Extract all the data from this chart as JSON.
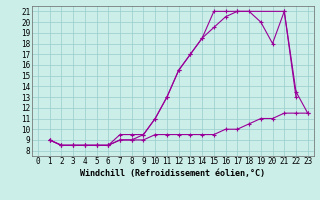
{
  "line1_x": [
    1,
    2,
    3,
    4,
    5,
    6,
    7,
    8,
    9,
    10,
    11,
    12,
    13,
    14,
    15,
    16,
    17,
    21,
    22
  ],
  "line1_y": [
    9.0,
    8.5,
    8.5,
    8.5,
    8.5,
    8.5,
    9.5,
    9.5,
    9.5,
    11.0,
    13.0,
    15.5,
    17.0,
    18.5,
    21.0,
    21.0,
    21.0,
    21.0,
    13.0
  ],
  "line2_x": [
    1,
    2,
    3,
    4,
    5,
    6,
    7,
    8,
    9,
    10,
    11,
    12,
    13,
    14,
    15,
    16,
    17,
    18,
    19,
    20,
    21,
    22,
    23
  ],
  "line2_y": [
    9.0,
    8.5,
    8.5,
    8.5,
    8.5,
    8.5,
    9.0,
    9.0,
    9.5,
    11.0,
    13.0,
    15.5,
    17.0,
    18.5,
    19.5,
    20.5,
    21.0,
    21.0,
    20.0,
    18.0,
    21.0,
    13.5,
    11.5
  ],
  "line3_x": [
    1,
    2,
    3,
    4,
    5,
    6,
    7,
    8,
    9,
    10,
    11,
    12,
    13,
    14,
    15,
    16,
    17,
    18,
    19,
    20,
    21,
    22,
    23
  ],
  "line3_y": [
    9.0,
    8.5,
    8.5,
    8.5,
    8.5,
    8.5,
    9.0,
    9.0,
    9.0,
    9.5,
    9.5,
    9.5,
    9.5,
    9.5,
    9.5,
    10.0,
    10.0,
    10.5,
    11.0,
    11.0,
    11.5,
    11.5,
    11.5
  ],
  "line_color": "#990099",
  "bg_color": "#cceee8",
  "xlabel": "Windchill (Refroidissement éolien,°C)",
  "xlim": [
    -0.5,
    23.5
  ],
  "ylim": [
    7.5,
    21.5
  ],
  "xticks": [
    0,
    1,
    2,
    3,
    4,
    5,
    6,
    7,
    8,
    9,
    10,
    11,
    12,
    13,
    14,
    15,
    16,
    17,
    18,
    19,
    20,
    21,
    22,
    23
  ],
  "yticks": [
    8,
    9,
    10,
    11,
    12,
    13,
    14,
    15,
    16,
    17,
    18,
    19,
    20,
    21
  ],
  "xlabel_fontsize": 6.0,
  "tick_fontsize": 5.5,
  "grid_color": "#99cccc",
  "marker": "+"
}
